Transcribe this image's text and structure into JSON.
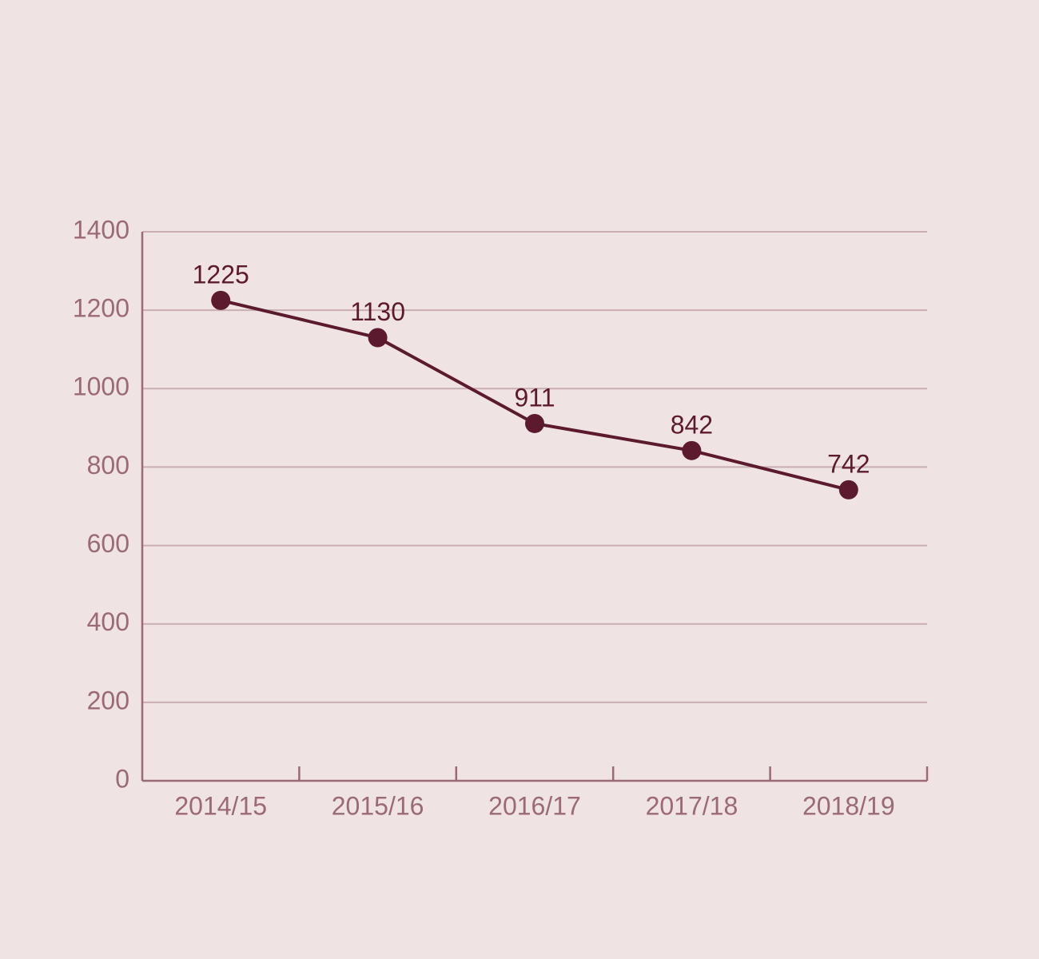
{
  "chart_data": {
    "type": "line",
    "categories": [
      "2014/15",
      "2015/16",
      "2016/17",
      "2017/18",
      "2018/19"
    ],
    "values": [
      1225,
      1130,
      911,
      842,
      742
    ],
    "color": "#5c1a2e",
    "ylim": [
      0,
      1400
    ],
    "yticks": [
      0,
      200,
      400,
      600,
      800,
      1000,
      1200,
      1400
    ],
    "grid": true
  }
}
